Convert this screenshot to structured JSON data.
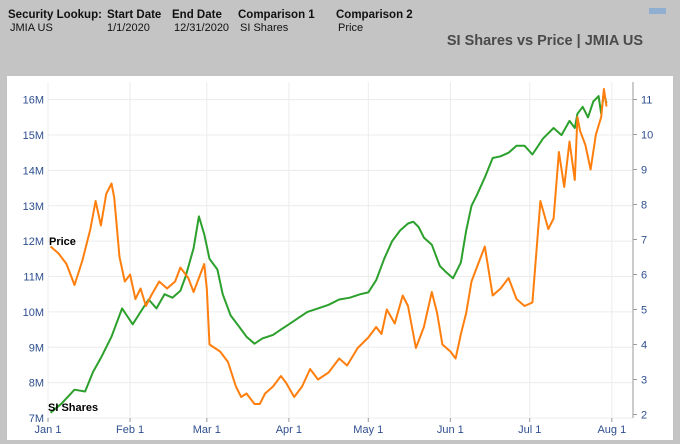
{
  "header": {
    "security_label": "Security Lookup:",
    "security_value": "JMIA US",
    "start_label": "Start Date",
    "start_value": "1/1/2020",
    "end_label": "End Date",
    "end_value": "12/31/2020",
    "comp1_label": "Comparison 1",
    "comp1_value": "SI Shares",
    "comp2_label": "Comparison 2",
    "comp2_value": "Price"
  },
  "colors": {
    "si_shares": "#2ca02c",
    "price": "#ff7f0e",
    "grid": "#ececec",
    "axis": "#2f4f8f"
  },
  "chart_data": {
    "type": "line",
    "title": "SI Shares vs Price | JMIA US",
    "x_ticks": [
      "Jan 1",
      "Feb 1",
      "Mar 1",
      "Apr 1",
      "May 1",
      "Jun 1",
      "Jul 1",
      "Aug 1"
    ],
    "x_tick_values": [
      0,
      31,
      60,
      91,
      121,
      152,
      182,
      213
    ],
    "y_left": {
      "label": "SI Shares",
      "min": 7000000,
      "max": 16500000,
      "ticks": [
        "7M",
        "8M",
        "9M",
        "10M",
        "11M",
        "12M",
        "13M",
        "14M",
        "15M",
        "16M"
      ],
      "tick_values": [
        7000000,
        8000000,
        9000000,
        10000000,
        11000000,
        12000000,
        13000000,
        14000000,
        15000000,
        16000000
      ]
    },
    "y_right": {
      "label": "Price",
      "min": 1.9,
      "max": 11.5,
      "ticks": [
        "2",
        "3",
        "4",
        "5",
        "6",
        "7",
        "8",
        "9",
        "10",
        "11"
      ],
      "tick_values": [
        2,
        3,
        4,
        5,
        6,
        7,
        8,
        9,
        10,
        11
      ]
    },
    "series": [
      {
        "name": "SI Shares",
        "axis": "left",
        "x": [
          1,
          5,
          10,
          14,
          17,
          20,
          24,
          28,
          32,
          35,
          38,
          41,
          44,
          47,
          50,
          52,
          55,
          57,
          59,
          61,
          64,
          66,
          69,
          72,
          75,
          78,
          81,
          85,
          88,
          91,
          95,
          98,
          102,
          106,
          110,
          114,
          118,
          121,
          124,
          127,
          130,
          133,
          136,
          138,
          140,
          142,
          145,
          148,
          150,
          153,
          156,
          158,
          160,
          162,
          165,
          168,
          171,
          174,
          177,
          180,
          183,
          187,
          191,
          194,
          197,
          199,
          200,
          202,
          204,
          206,
          208,
          209,
          210,
          211
        ],
        "values": [
          7150000,
          7400000,
          7800000,
          7750000,
          8300000,
          8700000,
          9300000,
          10100000,
          9650000,
          10000000,
          10350000,
          10100000,
          10500000,
          10400000,
          10600000,
          11000000,
          11800000,
          12700000,
          12200000,
          11500000,
          11200000,
          10500000,
          9900000,
          9600000,
          9300000,
          9100000,
          9250000,
          9350000,
          9500000,
          9650000,
          9850000,
          10000000,
          10100000,
          10200000,
          10350000,
          10400000,
          10500000,
          10550000,
          10900000,
          11500000,
          12000000,
          12300000,
          12500000,
          12550000,
          12400000,
          12100000,
          11900000,
          11300000,
          11150000,
          10950000,
          11400000,
          12300000,
          13000000,
          13300000,
          13800000,
          14350000,
          14400000,
          14500000,
          14700000,
          14700000,
          14450000,
          14900000,
          15200000,
          15000000,
          15400000,
          15200000,
          15600000,
          15800000,
          15500000,
          15950000,
          16100000,
          15600000,
          16200000,
          15900000
        ]
      },
      {
        "name": "Price",
        "axis": "right",
        "x": [
          1,
          4,
          7,
          10,
          13,
          16,
          18,
          20,
          22,
          24,
          25,
          27,
          29,
          31,
          33,
          35,
          37,
          39,
          42,
          45,
          48,
          50,
          53,
          55,
          57,
          59,
          60,
          61,
          63,
          65,
          68,
          71,
          73,
          75,
          78,
          80,
          82,
          85,
          88,
          90,
          93,
          96,
          99,
          102,
          106,
          110,
          113,
          117,
          121,
          124,
          126,
          128,
          131,
          134,
          136,
          139,
          142,
          145,
          147,
          149,
          152,
          154,
          156,
          158,
          160,
          162,
          165,
          168,
          171,
          174,
          177,
          180,
          183,
          186,
          189,
          191,
          193,
          195,
          197,
          199,
          200,
          201,
          203,
          205,
          207,
          209,
          210,
          211
        ],
        "values": [
          6.8,
          6.6,
          6.3,
          5.7,
          6.4,
          7.3,
          8.1,
          7.4,
          8.3,
          8.6,
          8.2,
          6.5,
          5.8,
          6.0,
          5.3,
          5.6,
          5.1,
          5.4,
          5.8,
          5.6,
          5.8,
          6.2,
          5.9,
          5.5,
          5.9,
          6.3,
          5.6,
          4.0,
          3.9,
          3.8,
          3.5,
          2.8,
          2.5,
          2.6,
          2.3,
          2.3,
          2.6,
          2.8,
          3.1,
          2.9,
          2.5,
          2.8,
          3.3,
          3.0,
          3.2,
          3.6,
          3.4,
          3.9,
          4.2,
          4.5,
          4.3,
          5.0,
          4.6,
          5.4,
          5.1,
          3.9,
          4.5,
          5.5,
          4.9,
          4.0,
          3.8,
          3.6,
          4.3,
          4.9,
          5.8,
          6.2,
          6.8,
          5.4,
          5.6,
          5.9,
          5.3,
          5.1,
          5.2,
          8.1,
          7.3,
          7.6,
          9.5,
          8.5,
          9.8,
          8.7,
          10.5,
          10.1,
          9.7,
          9.0,
          10.0,
          10.5,
          11.3,
          10.8
        ]
      }
    ],
    "series_labels": [
      "Price",
      "SI Shares"
    ]
  }
}
